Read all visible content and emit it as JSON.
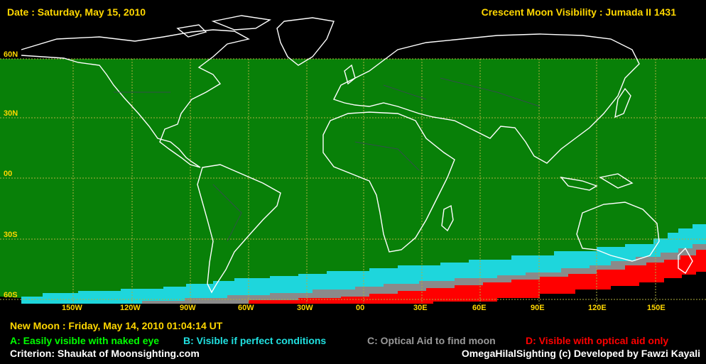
{
  "header": {
    "date": "Date : Saturday, May 15, 2010",
    "title": "Crescent Moon Visibility : Jumada II  1431"
  },
  "footer": {
    "new_moon": "New Moon : Friday, May 14, 2010  01:04:14  UT",
    "criterion": "Criterion: Shaukat of Moonsighting.com",
    "credit": "OmegaHilalSighting  (c)  Developed by Fawzi Kayali"
  },
  "legend": [
    {
      "text": "A: Easily visible with naked eye",
      "color": "#00ff00"
    },
    {
      "text": "B: Visible if perfect conditions",
      "color": "#20e0e0"
    },
    {
      "text": "C: Optical Aid to find moon",
      "color": "#999999"
    },
    {
      "text": "D: Visible with optical aid only",
      "color": "#ff0000"
    }
  ],
  "lat_labels": [
    "60N",
    "30N",
    "00",
    "30S",
    "60S"
  ],
  "lon_labels": [
    "150W",
    "120W",
    "90W",
    "60W",
    "30W",
    "00",
    "30E",
    "60E",
    "90E",
    "120E",
    "150E"
  ],
  "colors": {
    "zone_a": "#088008",
    "zone_b": "#1ed6dc",
    "zone_c": "#8a8a8a",
    "zone_d": "#ff0000",
    "grid": "#b0b040",
    "coast": "#ffffff",
    "label": "#ffd700"
  }
}
